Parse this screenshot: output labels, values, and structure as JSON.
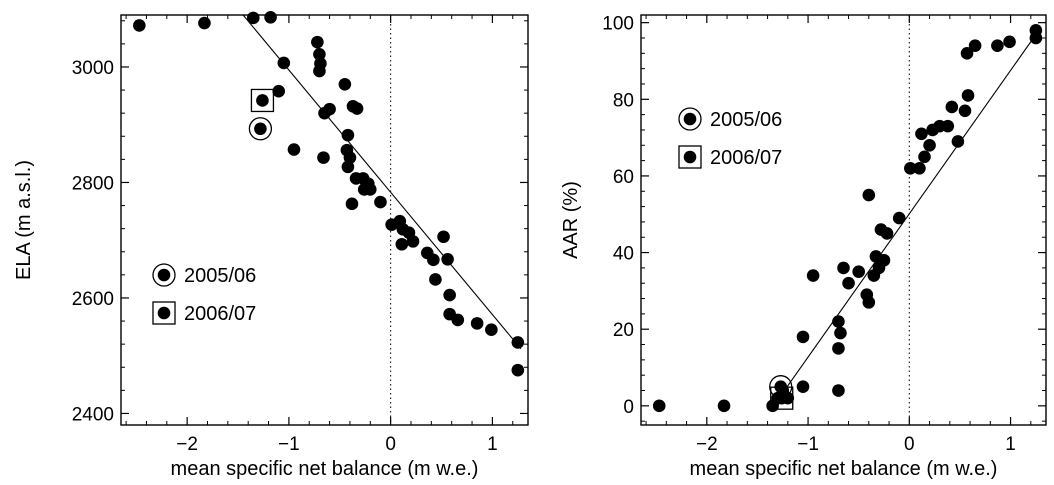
{
  "chart_data": [
    {
      "type": "scatter",
      "xlabel": "mean specific net balance  (m w.e.)",
      "ylabel": "ELA  (m a.s.l.)",
      "xlim": [
        -2.65,
        1.35
      ],
      "ylim": [
        2380,
        3090
      ],
      "xticks": [
        -2,
        -1,
        0,
        1
      ],
      "xtick_labels": [
        "−2",
        "−1",
        "0",
        "1"
      ],
      "yticks": [
        2400,
        2600,
        2800,
        3000
      ],
      "ytick_labels": [
        "2400",
        "2600",
        "2800",
        "3000"
      ],
      "grid": false,
      "zero_line": "dotted vertical at x = 0",
      "legend_position": "lower-left",
      "legend": [
        {
          "label": "2005/06",
          "marker": "circle"
        },
        {
          "label": "2006/07",
          "marker": "square"
        }
      ],
      "fit_line": {
        "x": [
          -1.45,
          1.28
        ],
        "y": [
          3095,
          2512
        ]
      },
      "highlighted": [
        {
          "label": "2005/06",
          "x": -1.28,
          "y": 2893
        },
        {
          "label": "2006/07",
          "x": -1.26,
          "y": 2942
        }
      ],
      "points": {
        "x": [
          -2.47,
          -1.83,
          -1.35,
          -1.18,
          -1.05,
          -1.1,
          -0.95,
          -0.72,
          -0.7,
          -0.69,
          -0.7,
          -0.66,
          -0.6,
          -0.65,
          -0.45,
          -0.42,
          -0.43,
          -0.42,
          -0.38,
          -0.4,
          -0.37,
          -0.34,
          -0.27,
          -0.33,
          -0.26,
          -0.22,
          -0.2,
          -0.1,
          0.01,
          0.09,
          0.12,
          0.18,
          0.22,
          0.11,
          0.36,
          0.42,
          0.44,
          0.52,
          0.56,
          0.58,
          0.58,
          0.66,
          0.85,
          0.99,
          1.25,
          1.25
        ],
        "y": [
          3072,
          3076,
          3085,
          3086,
          3007,
          2958,
          2857,
          3043,
          3022,
          3006,
          2993,
          2843,
          2927,
          2920,
          2970,
          2882,
          2856,
          2827,
          2763,
          2843,
          2932,
          2807,
          2807,
          2928,
          2788,
          2798,
          2788,
          2766,
          2727,
          2733,
          2719,
          2713,
          2698,
          2693,
          2678,
          2666,
          2632,
          2706,
          2667,
          2605,
          2572,
          2562,
          2556,
          2545,
          2523,
          2475
        ]
      }
    },
    {
      "type": "scatter",
      "xlabel": "mean specific net balance  (m w.e.)",
      "ylabel": "AAR  (%)",
      "xlim": [
        -2.65,
        1.35
      ],
      "ylim": [
        -5,
        102
      ],
      "xticks": [
        -2,
        -1,
        0,
        1
      ],
      "xtick_labels": [
        "−2",
        "−1",
        "0",
        "1"
      ],
      "yticks": [
        0,
        20,
        40,
        60,
        80,
        100
      ],
      "ytick_labels": [
        "0",
        "20",
        "40",
        "60",
        "80",
        "100"
      ],
      "grid": false,
      "zero_line": "dotted vertical at x = 0",
      "legend_position": "upper-left",
      "legend": [
        {
          "label": "2005/06",
          "marker": "circle"
        },
        {
          "label": "2006/07",
          "marker": "square"
        }
      ],
      "fit_line": {
        "x": [
          -1.26,
          1.28
        ],
        "y": [
          3,
          98
        ]
      },
      "highlighted": [
        {
          "label": "2005/06",
          "x": -1.27,
          "y": 5
        },
        {
          "label": "2006/07",
          "x": -1.26,
          "y": 2
        }
      ],
      "points": {
        "x": [
          -2.47,
          -1.83,
          -1.35,
          -1.3,
          -1.25,
          -1.2,
          -1.05,
          -1.05,
          -0.95,
          -0.7,
          -0.7,
          -0.68,
          -0.7,
          -0.65,
          -0.6,
          -0.5,
          -0.4,
          -0.42,
          -0.4,
          -0.35,
          -0.33,
          -0.3,
          -0.28,
          -0.25,
          -0.22,
          -0.1,
          0.01,
          0.1,
          0.12,
          0.15,
          0.2,
          0.23,
          0.3,
          0.38,
          0.42,
          0.48,
          0.55,
          0.58,
          0.57,
          0.65,
          0.87,
          0.99,
          1.25,
          1.25
        ],
        "y": [
          0,
          0,
          0,
          2,
          4,
          2,
          5,
          18,
          34,
          4,
          15,
          19,
          22,
          36,
          32,
          35,
          27,
          29,
          55,
          34,
          39,
          36,
          46,
          38,
          45,
          49,
          62,
          62,
          71,
          65,
          68,
          72,
          73,
          73,
          78,
          69,
          77,
          81,
          92,
          94,
          94,
          95,
          96,
          98
        ]
      }
    }
  ]
}
